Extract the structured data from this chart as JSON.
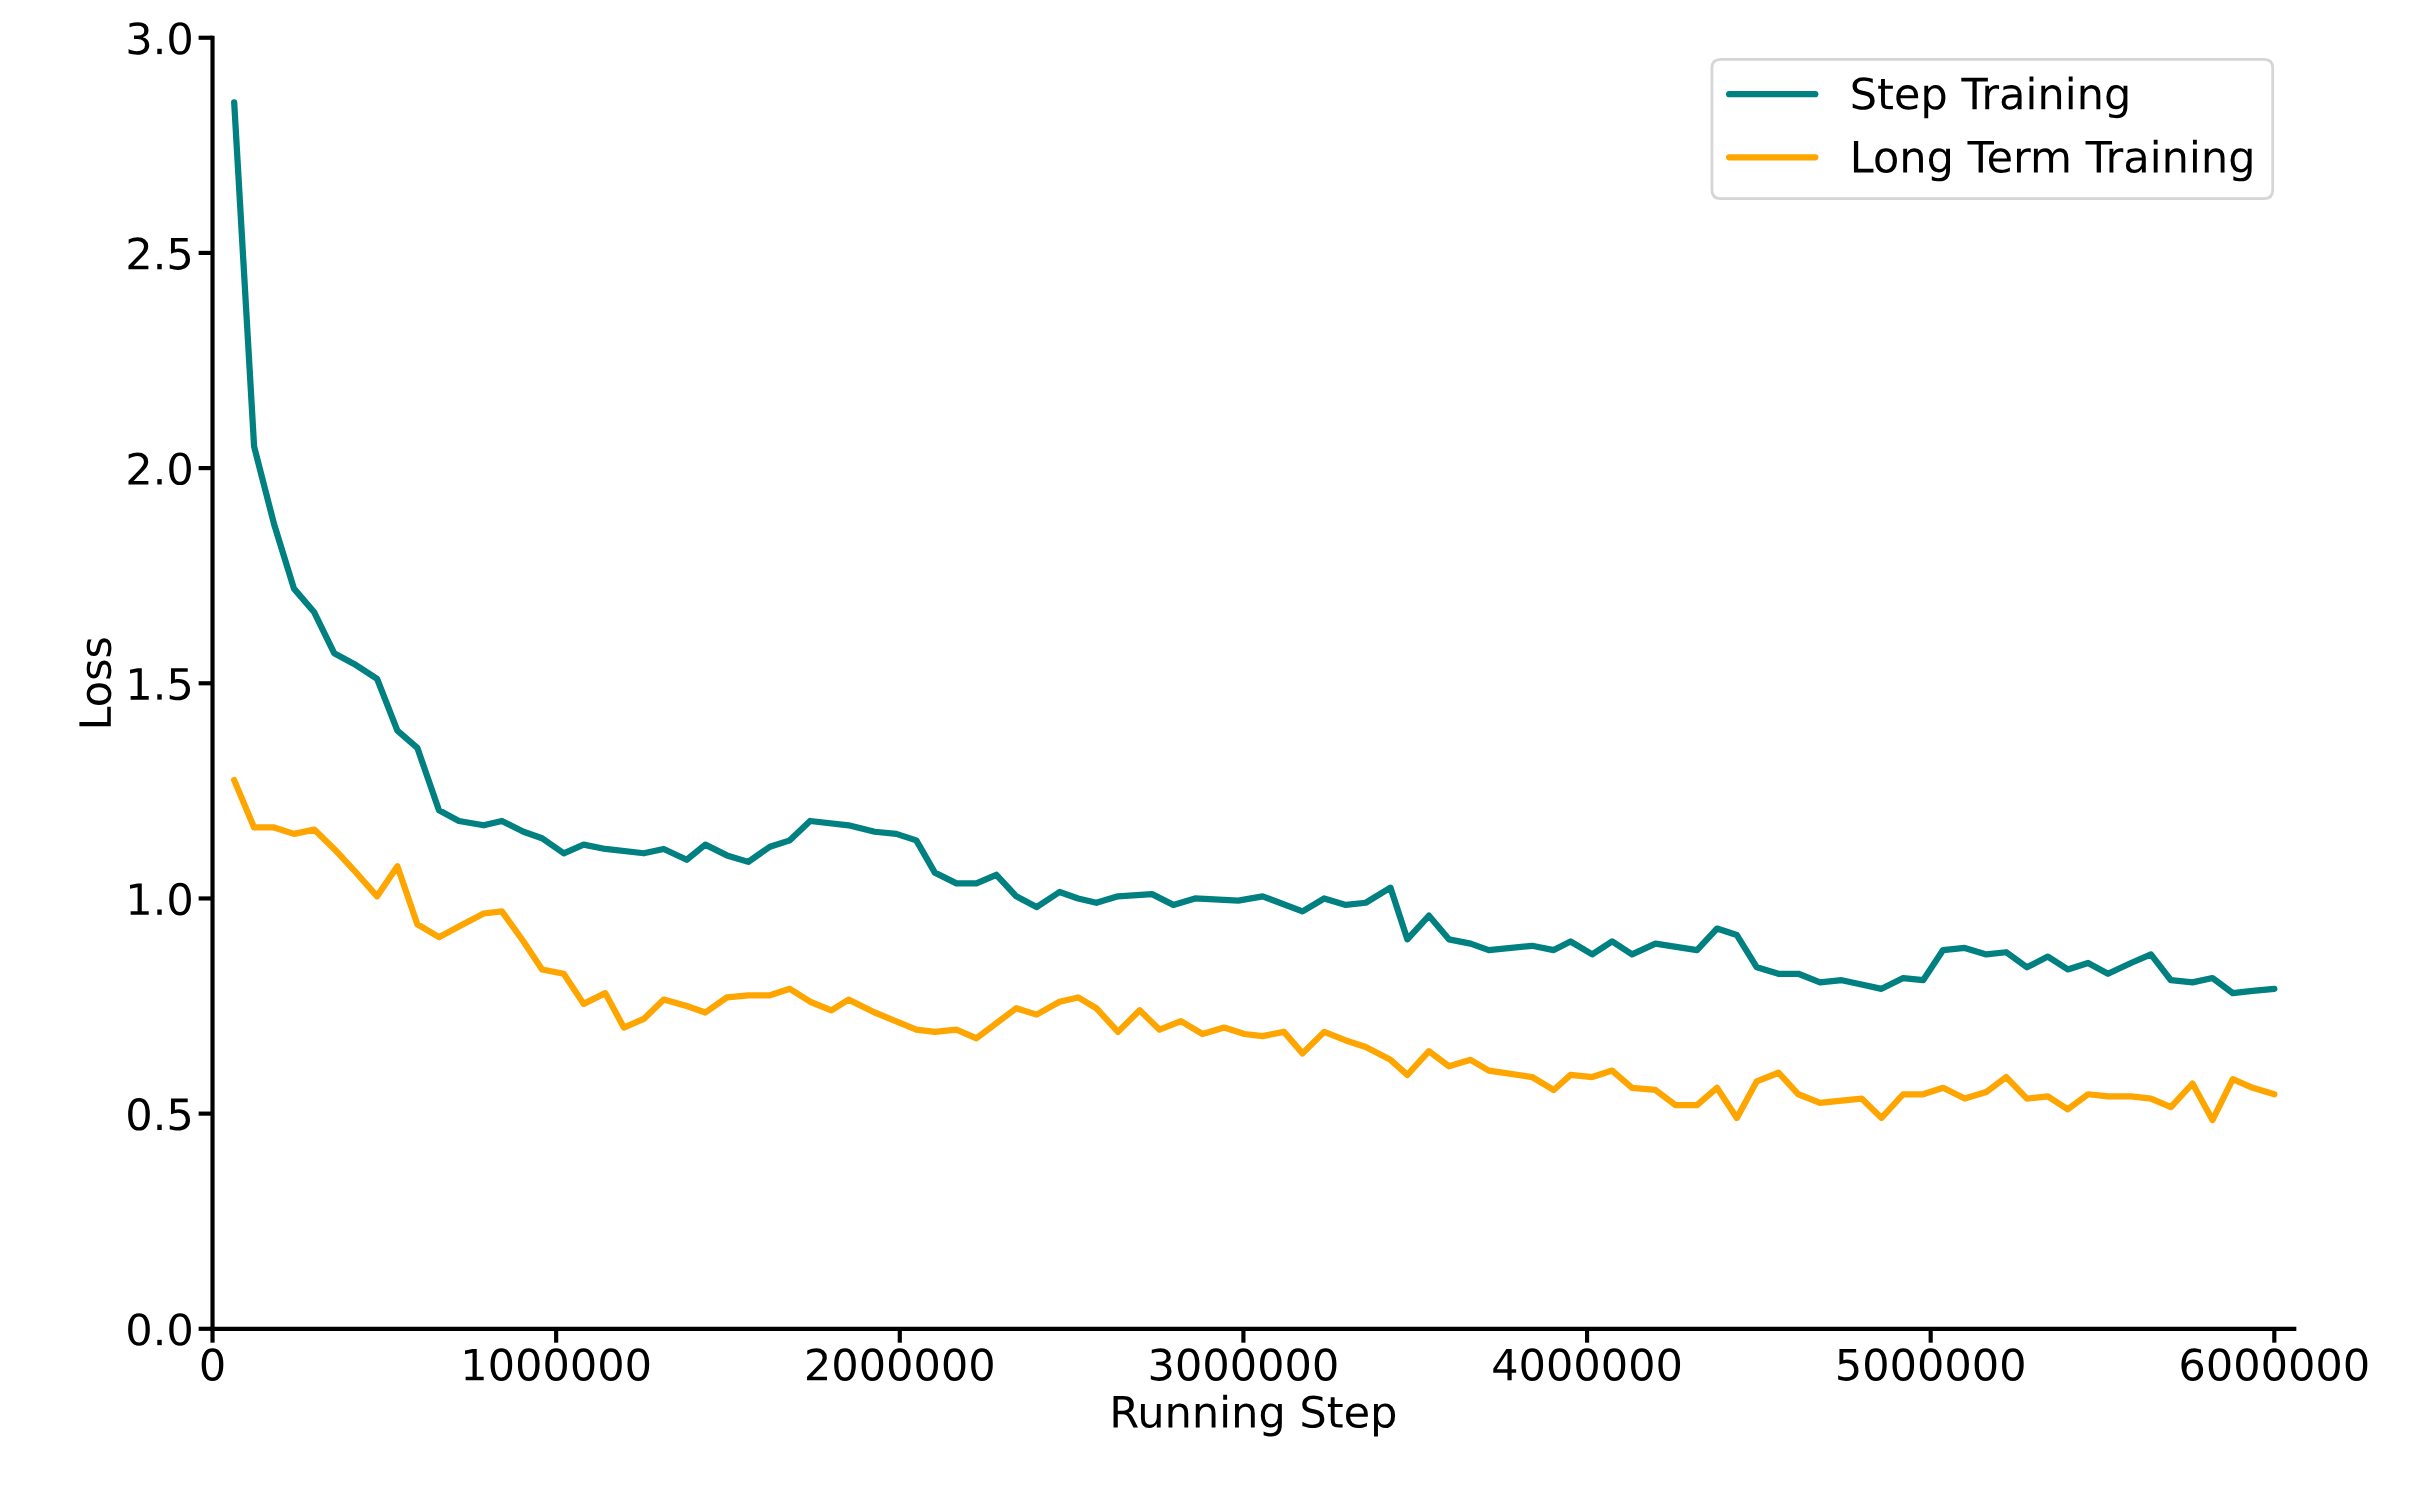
{
  "chart_data": {
    "type": "line",
    "xlabel": "Running Step",
    "ylabel": "Loss",
    "xlim": [
      0,
      6058000
    ],
    "xticks": [
      0,
      1000000,
      2000000,
      3000000,
      4000000,
      5000000,
      6000000
    ],
    "ylim": [
      0,
      3
    ],
    "yticks": [
      {
        "value": 0,
        "label": "0.0"
      },
      {
        "value": 0.5,
        "label": "0.5"
      },
      {
        "value": 1,
        "label": "1.0"
      },
      {
        "value": 1.5,
        "label": "1.5"
      },
      {
        "value": 2,
        "label": "2.0"
      },
      {
        "value": 2.5,
        "label": "2.5"
      },
      {
        "value": 3,
        "label": "3.0"
      }
    ],
    "grid": false,
    "legend": "top right",
    "line_style": "solid",
    "series": [
      {
        "name": "Step Training",
        "color": "#008080",
        "x": [
          63000,
          121000,
          179000,
          237000,
          296000,
          354000,
          412000,
          479000,
          538000,
          596000,
          659000,
          717000,
          789000,
          842000,
          905000,
          959000,
          1022000,
          1080000,
          1143000,
          1255000,
          1313000,
          1380000,
          1434000,
          1497000,
          1559000,
          1622000,
          1680000,
          1739000,
          1851000,
          1927000,
          1990000,
          2048000,
          2102000,
          2165000,
          2223000,
          2281000,
          2339000,
          2398000,
          2465000,
          2519000,
          2572000,
          2635000,
          2734000,
          2796000,
          2859000,
          2985000,
          3056000,
          3172000,
          3235000,
          3298000,
          3356000,
          3428000,
          3477000,
          3540000,
          3598000,
          3661000,
          3714000,
          3840000,
          3903000,
          3952000,
          4015000,
          4073000,
          4131000,
          4199000,
          4320000,
          4378000,
          4436000,
          4494000,
          4557000,
          4615000,
          4678000,
          4741000,
          4799000,
          4857000,
          4920000,
          4978000,
          5036000,
          5099000,
          5162000,
          5220000,
          5280000,
          5341000,
          5399000,
          5458000,
          5516000,
          5583000,
          5641000,
          5699000,
          5762000,
          5820000,
          5879000,
          5937000,
          6000000
        ],
        "values": [
          2.85,
          2.05,
          1.87,
          1.72,
          1.665,
          1.57,
          1.545,
          1.51,
          1.39,
          1.35,
          1.205,
          1.18,
          1.17,
          1.18,
          1.155,
          1.14,
          1.105,
          1.125,
          1.115,
          1.105,
          1.115,
          1.09,
          1.125,
          1.1,
          1.085,
          1.12,
          1.135,
          1.18,
          1.17,
          1.155,
          1.15,
          1.135,
          1.06,
          1.035,
          1.035,
          1.055,
          1.005,
          0.98,
          1.015,
          1.0,
          0.99,
          1.005,
          1.01,
          0.985,
          1.0,
          0.995,
          1.005,
          0.97,
          1.0,
          0.985,
          0.99,
          1.025,
          0.905,
          0.96,
          0.905,
          0.895,
          0.88,
          0.89,
          0.88,
          0.9,
          0.87,
          0.9,
          0.87,
          0.895,
          0.88,
          0.93,
          0.915,
          0.84,
          0.825,
          0.825,
          0.805,
          0.81,
          0.8,
          0.79,
          0.815,
          0.81,
          0.88,
          0.885,
          0.87,
          0.875,
          0.84,
          0.865,
          0.835,
          0.85,
          0.825,
          0.85,
          0.87,
          0.81,
          0.805,
          0.815,
          0.78,
          0.785,
          0.79
        ]
      },
      {
        "name": "Long Term Training",
        "color": "#ffa500",
        "x": [
          63000,
          121000,
          179000,
          237000,
          296000,
          354000,
          412000,
          479000,
          538000,
          596000,
          659000,
          717000,
          789000,
          842000,
          905000,
          959000,
          1022000,
          1080000,
          1143000,
          1197000,
          1255000,
          1313000,
          1380000,
          1434000,
          1497000,
          1559000,
          1622000,
          1680000,
          1739000,
          1801000,
          1851000,
          1927000,
          2048000,
          2102000,
          2165000,
          2223000,
          2281000,
          2339000,
          2398000,
          2465000,
          2519000,
          2572000,
          2635000,
          2698000,
          2756000,
          2818000,
          2881000,
          2944000,
          3003000,
          3056000,
          3118000,
          3172000,
          3235000,
          3298000,
          3356000,
          3428000,
          3477000,
          3540000,
          3598000,
          3661000,
          3714000,
          3840000,
          3903000,
          3952000,
          4015000,
          4073000,
          4131000,
          4199000,
          4257000,
          4320000,
          4378000,
          4436000,
          4494000,
          4557000,
          4615000,
          4678000,
          4741000,
          4799000,
          4857000,
          4920000,
          4978000,
          5036000,
          5099000,
          5162000,
          5220000,
          5280000,
          5341000,
          5399000,
          5458000,
          5516000,
          5583000,
          5641000,
          5699000,
          5762000,
          5820000,
          5879000,
          5937000,
          6000000
        ],
        "values": [
          1.275,
          1.165,
          1.165,
          1.15,
          1.16,
          1.115,
          1.065,
          1.005,
          1.075,
          0.94,
          0.91,
          0.935,
          0.965,
          0.97,
          0.9,
          0.835,
          0.825,
          0.755,
          0.78,
          0.7,
          0.72,
          0.765,
          0.75,
          0.735,
          0.77,
          0.775,
          0.775,
          0.79,
          0.76,
          0.74,
          0.765,
          0.735,
          0.695,
          0.69,
          0.695,
          0.675,
          0.71,
          0.745,
          0.73,
          0.76,
          0.77,
          0.745,
          0.69,
          0.74,
          0.695,
          0.715,
          0.685,
          0.7,
          0.685,
          0.68,
          0.69,
          0.64,
          0.69,
          0.67,
          0.655,
          0.625,
          0.59,
          0.645,
          0.61,
          0.625,
          0.6,
          0.585,
          0.555,
          0.59,
          0.585,
          0.6,
          0.56,
          0.555,
          0.52,
          0.52,
          0.56,
          0.49,
          0.575,
          0.595,
          0.545,
          0.525,
          0.53,
          0.535,
          0.49,
          0.545,
          0.545,
          0.56,
          0.535,
          0.55,
          0.585,
          0.535,
          0.54,
          0.51,
          0.545,
          0.54,
          0.54,
          0.535,
          0.515,
          0.57,
          0.485,
          0.58,
          0.56,
          0.545
        ]
      }
    ]
  }
}
